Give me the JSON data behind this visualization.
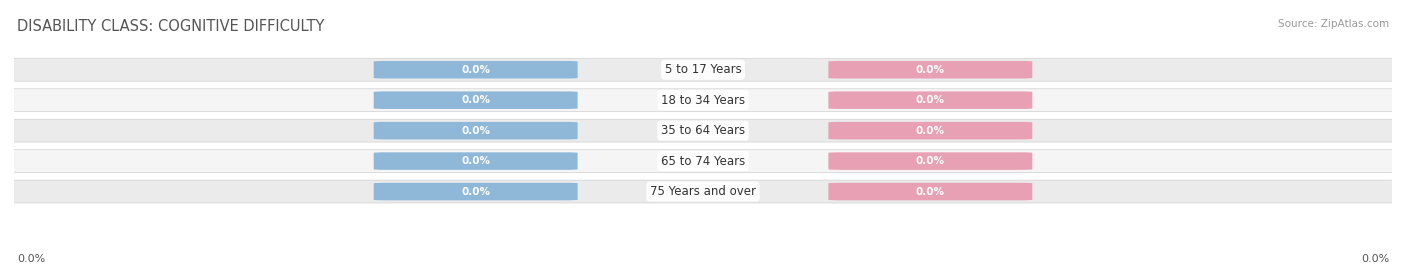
{
  "title": "DISABILITY CLASS: COGNITIVE DIFFICULTY",
  "source": "Source: ZipAtlas.com",
  "categories": [
    "5 to 17 Years",
    "18 to 34 Years",
    "35 to 64 Years",
    "65 to 74 Years",
    "75 Years and over"
  ],
  "male_values": [
    0.0,
    0.0,
    0.0,
    0.0,
    0.0
  ],
  "female_values": [
    0.0,
    0.0,
    0.0,
    0.0,
    0.0
  ],
  "male_color": "#8fb8d8",
  "female_color": "#e8a0b4",
  "bar_bg_color": "#ebebeb",
  "bar_bg_color2": "#f5f5f5",
  "bar_edge_color": "#d0d0d0",
  "title_color": "#555555",
  "source_color": "#999999",
  "label_color": "#555555",
  "axis_label_left": "0.0%",
  "axis_label_right": "0.0%",
  "background_color": "#ffffff",
  "bar_height": 0.72,
  "label_fontsize": 7.5,
  "title_fontsize": 10.5,
  "category_fontsize": 8.5,
  "legend_fontsize": 9
}
